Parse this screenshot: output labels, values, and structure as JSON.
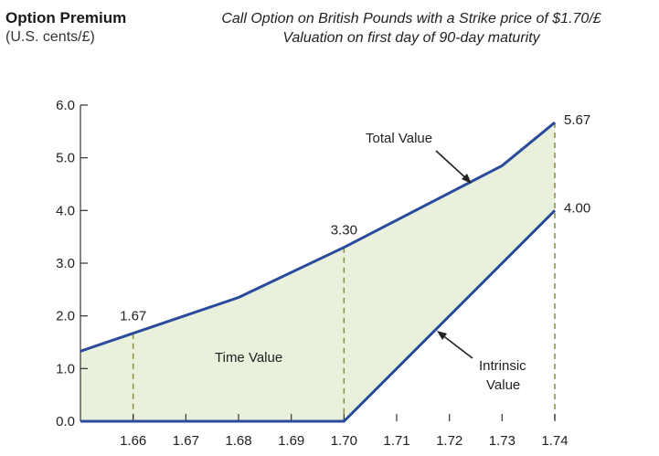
{
  "header": {
    "title": "Option Premium",
    "unit": "(U.S. cents/£)",
    "subtitle_line1": "Call Option on British Pounds with a Strike price of $1.70/£",
    "subtitle_line2": "Valuation on first day of 90-day maturity"
  },
  "chart_data": {
    "type": "area",
    "title": "Option Premium",
    "ylabel": "(U.S. cents/£)",
    "xlabel": "",
    "xlim": [
      1.65,
      1.74
    ],
    "ylim": [
      0,
      6
    ],
    "x_ticks": [
      1.66,
      1.67,
      1.68,
      1.69,
      1.7,
      1.71,
      1.72,
      1.73,
      1.74
    ],
    "x_tick_labels": [
      "1.66",
      "1.67",
      "1.68",
      "1.69",
      "1.70",
      "1.71",
      "1.72",
      "1.73",
      "1.74"
    ],
    "y_ticks": [
      0,
      1,
      2,
      3,
      4,
      5,
      6
    ],
    "y_tick_labels": [
      "0.0",
      "1.0",
      "2.0",
      "3.0",
      "4.0",
      "5.0",
      "6.0"
    ],
    "series": [
      {
        "name": "Total Value",
        "x": [
          1.65,
          1.66,
          1.68,
          1.7,
          1.73,
          1.74
        ],
        "y": [
          1.33,
          1.67,
          2.35,
          3.3,
          4.85,
          5.67
        ]
      },
      {
        "name": "Intrinsic Value",
        "x": [
          1.65,
          1.7,
          1.74
        ],
        "y": [
          0.0,
          0.0,
          4.0
        ]
      }
    ],
    "fill_label": "Time Value",
    "colors": {
      "line": "#2a4a9c",
      "fill": "#e9f0dc",
      "dashed": "#8a8a40"
    },
    "dashed_markers": [
      {
        "x": 1.66,
        "y": 1.67,
        "label": "1.67"
      },
      {
        "x": 1.7,
        "y": 3.3,
        "label": "3.30"
      },
      {
        "x": 1.74,
        "y": 5.67,
        "label": "5.67",
        "low": 4.0,
        "low_label": "4.00"
      }
    ],
    "annotations": {
      "total_value": "Total Value",
      "time_value": "Time Value",
      "intrinsic_line1": "Intrinsic",
      "intrinsic_line2": "Value"
    },
    "grid": false
  }
}
